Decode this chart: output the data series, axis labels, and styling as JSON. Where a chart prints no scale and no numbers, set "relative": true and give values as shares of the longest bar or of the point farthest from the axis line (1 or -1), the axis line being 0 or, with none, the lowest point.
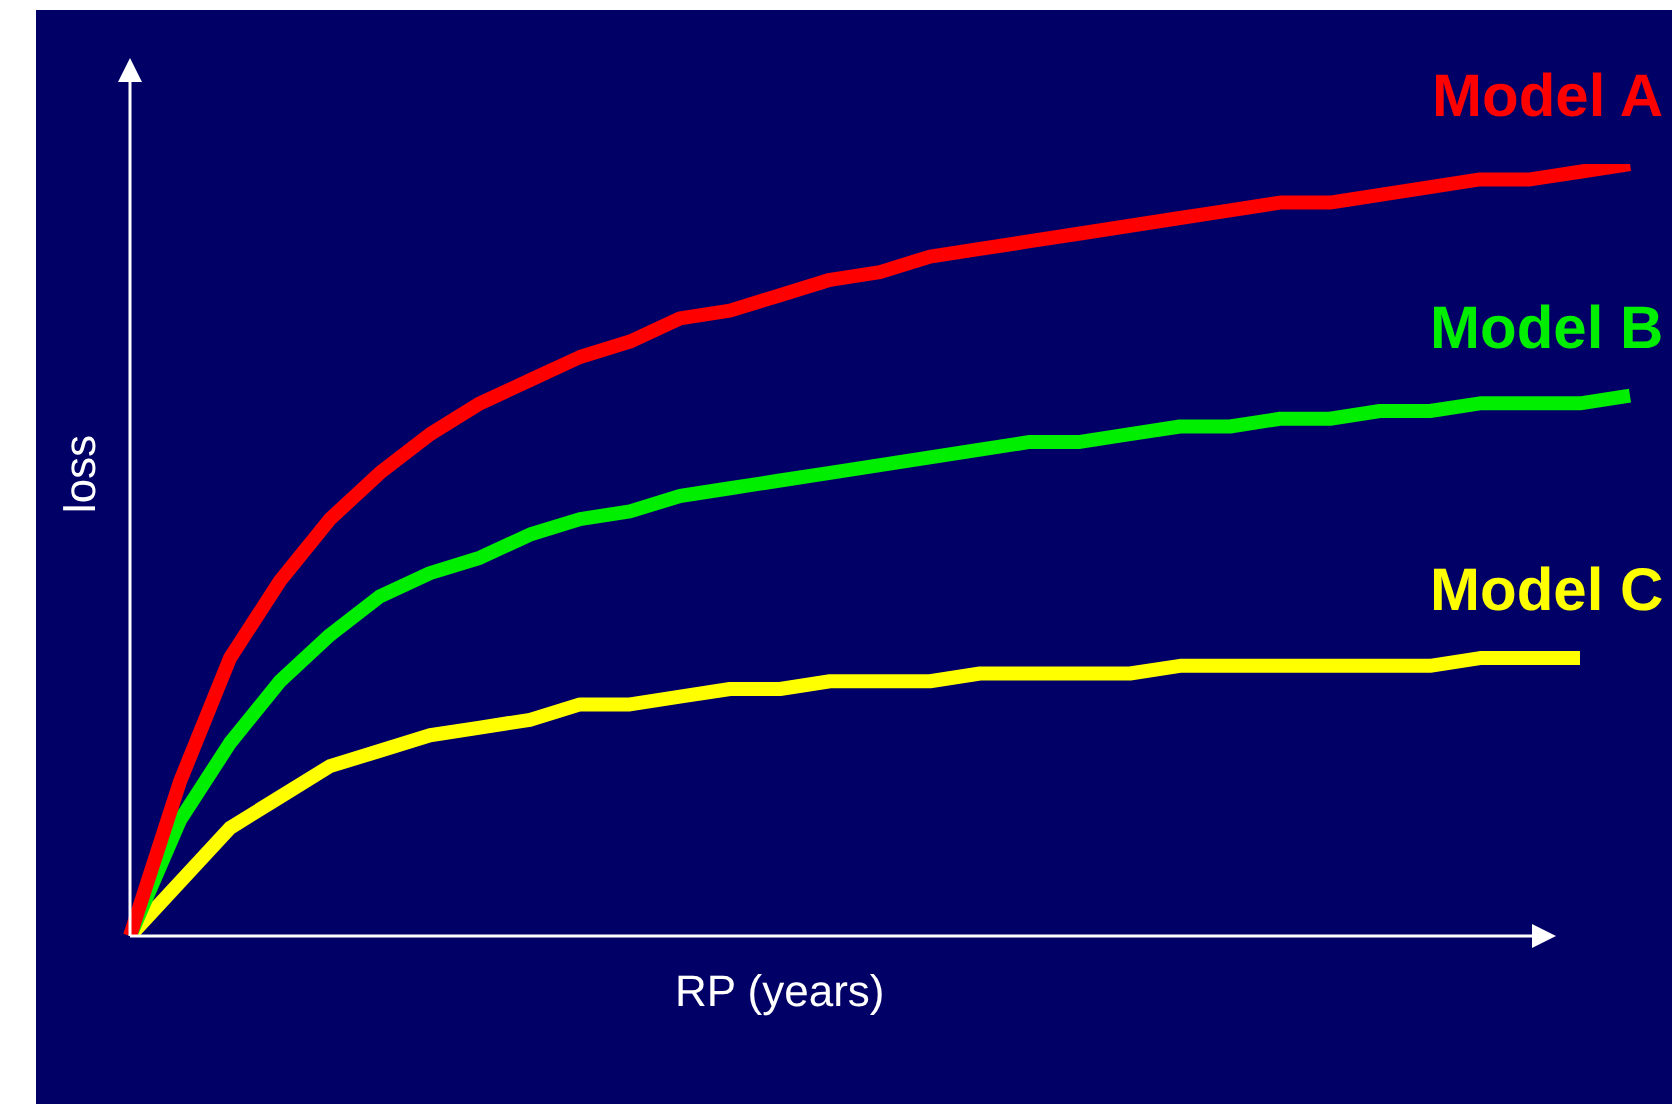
{
  "chart_data": {
    "type": "line",
    "relative": true,
    "xlabel": "RP (years)",
    "ylabel": "loss",
    "legend": false,
    "marker": "none",
    "line_style": "solid",
    "categories": [
      null,
      null,
      null,
      null,
      null,
      null,
      null,
      null,
      null,
      null,
      null,
      null,
      null,
      null,
      null,
      null,
      null,
      null,
      null,
      null,
      null,
      null,
      null,
      null,
      null,
      null,
      null,
      null,
      null,
      null,
      null
    ],
    "series": [
      {
        "name": "Model A",
        "color": "#ff0000",
        "values": [
          0,
          0.2,
          0.36,
          0.46,
          0.54,
          0.6,
          0.65,
          0.69,
          0.72,
          0.75,
          0.77,
          0.8,
          0.81,
          0.83,
          0.85,
          0.86,
          0.88,
          0.89,
          0.9,
          0.91,
          0.92,
          0.93,
          0.94,
          0.95,
          0.95,
          0.96,
          0.97,
          0.98,
          0.98,
          0.99,
          1
        ]
      },
      {
        "name": "Model B",
        "color": "#00ee00",
        "values": [
          0,
          0.15,
          0.25,
          0.33,
          0.39,
          0.44,
          0.47,
          0.49,
          0.52,
          0.54,
          0.55,
          0.57,
          0.58,
          0.59,
          0.6,
          0.61,
          0.62,
          0.63,
          0.64,
          0.64,
          0.65,
          0.66,
          0.66,
          0.67,
          0.67,
          0.68,
          0.68,
          0.69,
          0.69,
          0.69,
          0.7
        ]
      },
      {
        "name": "Model C",
        "color": "#ffff00",
        "values": [
          0,
          0.07,
          0.14,
          0.18,
          0.22,
          0.24,
          0.26,
          0.27,
          0.28,
          0.3,
          0.3,
          0.31,
          0.32,
          0.32,
          0.33,
          0.33,
          0.33,
          0.34,
          0.34,
          0.34,
          0.34,
          0.35,
          0.35,
          0.35,
          0.35,
          0.35,
          0.35,
          0.36,
          0.36,
          0.36,
          null
        ]
      }
    ]
  }
}
